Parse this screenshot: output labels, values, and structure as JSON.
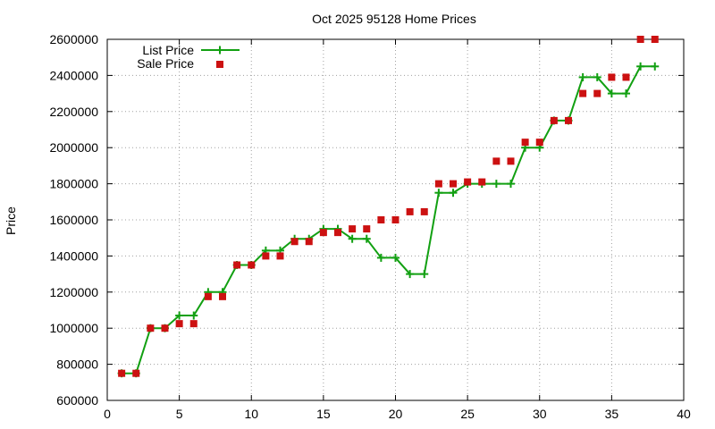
{
  "chart_data": {
    "type": "line",
    "title": "Oct 2025 95128 Home Prices",
    "xlabel": "",
    "ylabel": "Price",
    "xlim": [
      0,
      40
    ],
    "ylim": [
      600000,
      2600000
    ],
    "xticks": [
      0,
      5,
      10,
      15,
      20,
      25,
      30,
      35,
      40
    ],
    "yticks": [
      600000,
      800000,
      1000000,
      1200000,
      1400000,
      1600000,
      1800000,
      2000000,
      2200000,
      2400000,
      2600000
    ],
    "grid": true,
    "legend_position": "top-left",
    "series": [
      {
        "name": "List Price",
        "style": "line-with-plus-markers",
        "color": "#12a012",
        "points": [
          [
            1,
            750000
          ],
          [
            2,
            750000
          ],
          [
            3,
            1000000
          ],
          [
            4,
            1000000
          ],
          [
            5,
            1070000
          ],
          [
            6,
            1070000
          ],
          [
            7,
            1200000
          ],
          [
            8,
            1200000
          ],
          [
            9,
            1350000
          ],
          [
            10,
            1350000
          ],
          [
            11,
            1430000
          ],
          [
            12,
            1430000
          ],
          [
            13,
            1495000
          ],
          [
            14,
            1495000
          ],
          [
            15,
            1550000
          ],
          [
            16,
            1550000
          ],
          [
            17,
            1495000
          ],
          [
            18,
            1495000
          ],
          [
            19,
            1390000
          ],
          [
            20,
            1390000
          ],
          [
            21,
            1300000
          ],
          [
            22,
            1300000
          ],
          [
            23,
            1750000
          ],
          [
            24,
            1750000
          ],
          [
            25,
            1800000
          ],
          [
            26,
            1800000
          ],
          [
            27,
            1800000
          ],
          [
            28,
            1800000
          ],
          [
            29,
            2000000
          ],
          [
            30,
            2000000
          ],
          [
            31,
            2150000
          ],
          [
            32,
            2150000
          ],
          [
            33,
            2390000
          ],
          [
            34,
            2390000
          ],
          [
            35,
            2300000
          ],
          [
            36,
            2300000
          ],
          [
            37,
            2450000
          ],
          [
            38,
            2450000
          ]
        ]
      },
      {
        "name": "Sale Price",
        "style": "square-markers",
        "color": "#cc1111",
        "points": [
          [
            1,
            750000
          ],
          [
            2,
            750000
          ],
          [
            3,
            1000000
          ],
          [
            4,
            1000000
          ],
          [
            5,
            1025000
          ],
          [
            6,
            1025000
          ],
          [
            7,
            1175000
          ],
          [
            8,
            1175000
          ],
          [
            9,
            1350000
          ],
          [
            10,
            1350000
          ],
          [
            11,
            1400000
          ],
          [
            12,
            1400000
          ],
          [
            13,
            1480000
          ],
          [
            14,
            1480000
          ],
          [
            15,
            1530000
          ],
          [
            16,
            1530000
          ],
          [
            17,
            1550000
          ],
          [
            18,
            1550000
          ],
          [
            19,
            1600000
          ],
          [
            20,
            1600000
          ],
          [
            21,
            1645000
          ],
          [
            22,
            1645000
          ],
          [
            23,
            1800000
          ],
          [
            24,
            1800000
          ],
          [
            25,
            1810000
          ],
          [
            26,
            1810000
          ],
          [
            27,
            1925000
          ],
          [
            28,
            1925000
          ],
          [
            29,
            2030000
          ],
          [
            30,
            2030000
          ],
          [
            31,
            2150000
          ],
          [
            32,
            2150000
          ],
          [
            33,
            2300000
          ],
          [
            34,
            2300000
          ],
          [
            35,
            2390000
          ],
          [
            36,
            2390000
          ],
          [
            37,
            2600000
          ],
          [
            38,
            2600000
          ]
        ]
      }
    ]
  }
}
